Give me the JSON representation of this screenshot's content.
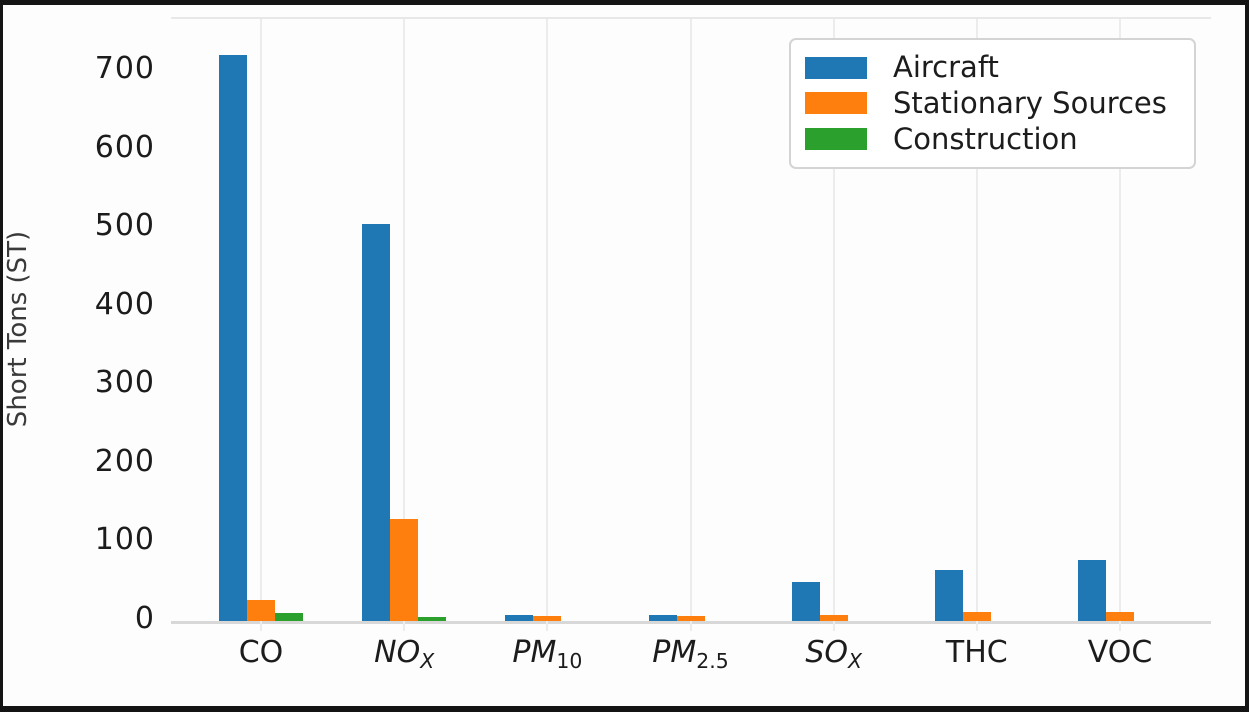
{
  "chart_data": {
    "type": "bar",
    "title": "",
    "xlabel": "",
    "ylabel": "Short Tons (ST)",
    "ylim": [
      0,
      760
    ],
    "yticks": [
      0,
      100,
      200,
      300,
      400,
      500,
      600,
      700
    ],
    "grid": "vertical-light",
    "legend_position": "upper-right",
    "categories": [
      "CO",
      "NOx",
      "PM10",
      "PM2.5",
      "SOx",
      "THC",
      "VOC"
    ],
    "category_labels": [
      {
        "main": "CO",
        "sub": "",
        "italic": false,
        "sub_italic": false
      },
      {
        "main": "NO",
        "sub": "X",
        "italic": true,
        "sub_italic": true
      },
      {
        "main": "PM",
        "sub": "10",
        "italic": true,
        "sub_italic": false
      },
      {
        "main": "PM",
        "sub": "2.5",
        "italic": true,
        "sub_italic": false
      },
      {
        "main": "SO",
        "sub": "X",
        "italic": true,
        "sub_italic": true
      },
      {
        "main": "THC",
        "sub": "",
        "italic": false,
        "sub_italic": false
      },
      {
        "main": "VOC",
        "sub": "",
        "italic": false,
        "sub_italic": false
      }
    ],
    "series": [
      {
        "name": "Aircraft",
        "color": "#1f77b4",
        "values": [
          720,
          505,
          8,
          8,
          50,
          65,
          78
        ]
      },
      {
        "name": "Stationary Sources",
        "color": "#ff7f0e",
        "values": [
          27,
          130,
          6,
          6,
          8,
          12,
          11
        ]
      },
      {
        "name": "Construction",
        "color": "#2ca02c",
        "values": [
          10,
          5,
          0,
          0,
          0,
          0,
          0
        ]
      }
    ]
  }
}
